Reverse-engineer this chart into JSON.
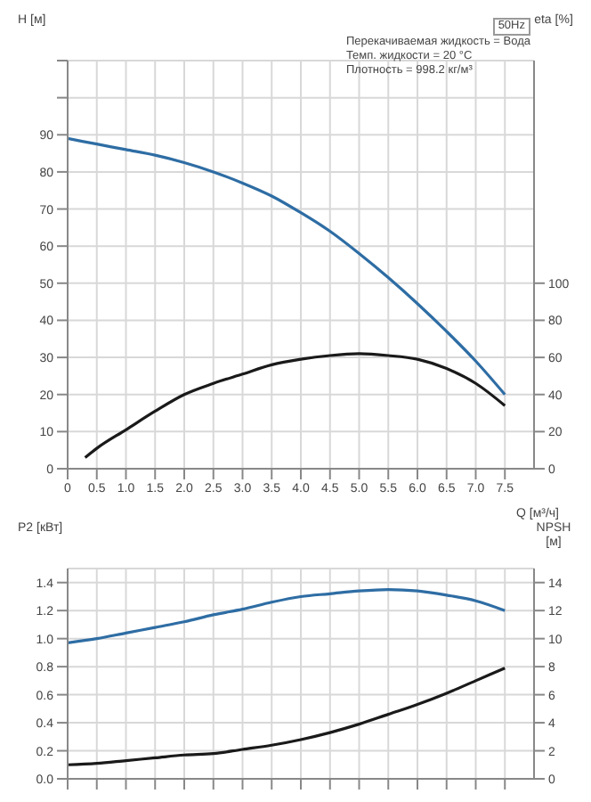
{
  "chart_data": [
    {
      "type": "line",
      "ylabel": "H [м]",
      "y2label": "eta [%]",
      "xlabel": "Q [м³/ч]",
      "annotations": [
        "50Hz",
        "Перекачиваемая жидкость = Вода",
        "Темп. жидкости = 20 °C",
        "Плотность = 998.2 кг/м³"
      ],
      "xlim": [
        0,
        8
      ],
      "xticks": [
        0,
        {
          "value": 0.5,
          "label": "0.5"
        },
        {
          "value": 1,
          "label": "1.0"
        },
        {
          "value": 1.5,
          "label": "1.5"
        },
        {
          "value": 2,
          "label": "2.0"
        },
        {
          "value": 2.5,
          "label": "2.5"
        },
        {
          "value": 3,
          "label": "3.0"
        },
        {
          "value": 3.5,
          "label": "3.5"
        },
        {
          "value": 4,
          "label": "4.0"
        },
        {
          "value": 4.5,
          "label": "4.5"
        },
        {
          "value": 5,
          "label": "5.0"
        },
        {
          "value": 5.5,
          "label": "5.5"
        },
        {
          "value": 6,
          "label": "6.0"
        },
        {
          "value": 6.5,
          "label": "6.5"
        },
        {
          "value": 7,
          "label": "7.0"
        },
        {
          "value": 7.5,
          "label": "7.5"
        }
      ],
      "ylim": [
        0,
        110
      ],
      "yticks": [
        0,
        10,
        20,
        30,
        40,
        50,
        60,
        70,
        80,
        90,
        {
          "value": 100,
          "label": null
        },
        {
          "value": 110,
          "label": null
        }
      ],
      "y2lim": [
        0,
        220
      ],
      "y2ticks": [
        0,
        20,
        40,
        60,
        80,
        100
      ],
      "grid": true,
      "legend": false,
      "series": [
        {
          "color": "#2e6da4",
          "x": [
            0,
            0.5,
            1,
            1.5,
            2,
            2.5,
            3,
            3.5,
            4,
            4.5,
            5,
            5.5,
            6,
            6.5,
            7,
            7.5
          ],
          "values": [
            89,
            87.5,
            86,
            84.5,
            82.5,
            80,
            77,
            73.5,
            69,
            64,
            58,
            51.5,
            44.5,
            37,
            29,
            20
          ]
        },
        {
          "color": "#1a1a1a",
          "axis": "y2",
          "x": [
            0.3,
            0.5,
            1,
            1.5,
            2,
            2.5,
            3,
            3.5,
            4,
            4.5,
            5,
            5.5,
            6,
            6.5,
            7,
            7.5
          ],
          "values": [
            6,
            11,
            21,
            31,
            40,
            46,
            51,
            56,
            59,
            61,
            62,
            61,
            59,
            54,
            46,
            34
          ]
        }
      ]
    },
    {
      "type": "line",
      "ylabel": "P2 [кВт]",
      "y2label": "NPSH [м]",
      "tick_labels": "y",
      "xlim": [
        0,
        8
      ],
      "xticks": [
        0,
        0.5,
        1,
        1.5,
        2,
        2.5,
        3,
        3.5,
        4,
        4.5,
        5,
        5.5,
        6,
        6.5,
        7,
        7.5
      ],
      "ylim": [
        0,
        1.5
      ],
      "yticks": [
        {
          "value": 0,
          "label": "0.0"
        },
        0.2,
        0.4,
        0.6,
        0.8,
        {
          "value": 1,
          "label": "1.0"
        },
        1.2,
        1.4
      ],
      "y2lim": [
        0,
        15
      ],
      "y2ticks": [
        0,
        2,
        4,
        6,
        8,
        10,
        12,
        14
      ],
      "grid": true,
      "legend": false,
      "series": [
        {
          "color": "#2e6da4",
          "x": [
            0,
            0.5,
            1,
            1.5,
            2,
            2.5,
            3,
            3.5,
            4,
            4.5,
            5,
            5.5,
            6,
            6.5,
            7,
            7.5
          ],
          "values": [
            0.97,
            1.0,
            1.04,
            1.08,
            1.12,
            1.17,
            1.21,
            1.26,
            1.3,
            1.32,
            1.34,
            1.35,
            1.34,
            1.31,
            1.27,
            1.2
          ]
        },
        {
          "color": "#1a1a1a",
          "axis": "y2",
          "x": [
            0,
            0.5,
            1,
            1.5,
            2,
            2.5,
            3,
            3.5,
            4,
            4.5,
            5,
            5.5,
            6,
            6.5,
            7,
            7.5
          ],
          "values": [
            1.0,
            1.1,
            1.3,
            1.5,
            1.7,
            1.8,
            2.1,
            2.4,
            2.8,
            3.3,
            3.9,
            4.6,
            5.3,
            6.1,
            7.0,
            7.9
          ]
        }
      ]
    }
  ]
}
